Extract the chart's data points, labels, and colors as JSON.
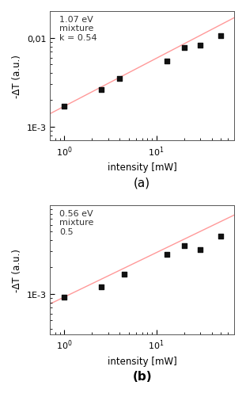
{
  "panel_a": {
    "title_text": "1.07 eV\nmixture\nk = 0.54",
    "xlabel": "intensity [mW]",
    "ylabel": "-ΔT (a.u.)",
    "label": "(a)",
    "data_x": [
      1.0,
      2.5,
      4.0,
      13.0,
      20.0,
      30.0,
      50.0
    ],
    "data_y": [
      0.0017,
      0.0026,
      0.0035,
      0.0055,
      0.0078,
      0.0082,
      0.0105
    ],
    "fit_slope": 0.54,
    "fit_intercept_log": -2.77,
    "line_color": "#ff9999",
    "marker_color": "#111111",
    "xlim": [
      0.7,
      70
    ],
    "ylim": [
      0.0007,
      0.02
    ],
    "yticks": [
      0.001,
      0.01
    ],
    "ytick_labels": [
      "1E-3",
      "0,01"
    ]
  },
  "panel_b": {
    "title_text": "0.56 eV\nmixture\n0.5",
    "xlabel": "intensity [mW]",
    "ylabel": "-ΔT (a.u.)",
    "label": "(b)",
    "data_x": [
      1.0,
      2.5,
      4.5,
      13.0,
      20.0,
      30.0,
      50.0
    ],
    "data_y": [
      0.00092,
      0.0012,
      0.00165,
      0.0028,
      0.0035,
      0.00315,
      0.0045
    ],
    "fit_slope": 0.5,
    "fit_intercept_log": -3.036,
    "line_color": "#ff9999",
    "marker_color": "#111111",
    "xlim": [
      0.7,
      70
    ],
    "ylim": [
      0.00035,
      0.01
    ],
    "yticks": [
      0.001
    ],
    "ytick_labels": [
      "1E-3"
    ]
  },
  "background_color": "#ffffff",
  "fig_width": 3.11,
  "fig_height": 5.02,
  "dpi": 100
}
